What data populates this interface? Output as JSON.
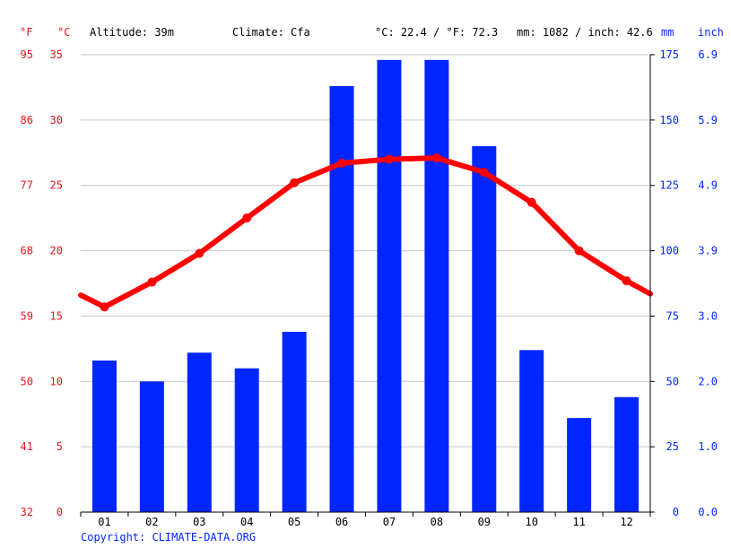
{
  "header": {
    "temp_unit_f": "°F",
    "temp_unit_c": "°C",
    "altitude": "Altitude: 39m",
    "climate": "Climate: Cfa",
    "temp_avg": "°C: 22.4 / °F: 72.3",
    "precip_total": "mm: 1082 / inch: 42.6",
    "precip_unit_mm": "mm",
    "precip_unit_inch": "inch"
  },
  "footer": {
    "copyright": "Copyright: CLIMATE-DATA.ORG"
  },
  "colors": {
    "temperature": "#ff0000",
    "precipitation": "#0026ff",
    "label_red": "#e8141b",
    "grid": "#c8c8c8"
  },
  "chart_data": {
    "type": "bar+line",
    "categories": [
      "01",
      "02",
      "03",
      "04",
      "05",
      "06",
      "07",
      "08",
      "09",
      "10",
      "11",
      "12"
    ],
    "series": [
      {
        "name": "mm",
        "type": "bar",
        "axis": "right",
        "values": [
          58,
          50,
          61,
          55,
          69,
          163,
          173,
          173,
          140,
          62,
          36,
          44
        ]
      },
      {
        "name": "°C",
        "type": "line",
        "axis": "left",
        "values": [
          15.7,
          17.6,
          19.8,
          22.5,
          25.2,
          26.7,
          27.0,
          27.1,
          26.0,
          23.7,
          20.0,
          17.7
        ],
        "edge_left": 16.6,
        "edge_right": 16.7
      }
    ],
    "y_left_c": {
      "ticks": [
        "0",
        "5",
        "10",
        "15",
        "20",
        "25",
        "30",
        "35"
      ],
      "range": [
        0,
        35
      ]
    },
    "y_left_f": {
      "ticks": [
        "32",
        "41",
        "50",
        "59",
        "68",
        "77",
        "86",
        "95"
      ]
    },
    "y_right_mm": {
      "ticks": [
        "0",
        "25",
        "50",
        "75",
        "100",
        "125",
        "150",
        "175"
      ],
      "range": [
        0,
        175
      ]
    },
    "y_right_inch": {
      "ticks": [
        "0.0",
        "1.0",
        "2.0",
        "3.0",
        "3.9",
        "4.9",
        "5.9",
        "6.9"
      ]
    },
    "grid": true
  }
}
